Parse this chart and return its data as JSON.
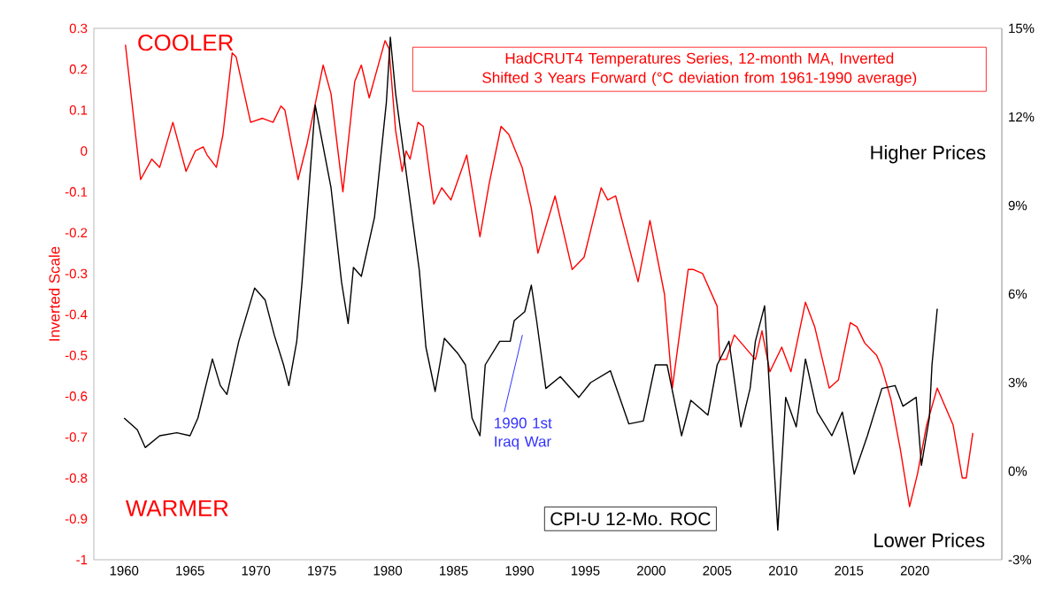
{
  "chart_data": {
    "type": "line",
    "ylabel": "Inverted Scale",
    "xlim": [
      1957.7,
      2026.6
    ],
    "xticks": [
      1960,
      1965,
      1970,
      1975,
      1980,
      1985,
      1990,
      1995,
      2000,
      2005,
      2010,
      2015,
      2020
    ],
    "ylim": [
      -1,
      0.3
    ],
    "yticks": [
      -1,
      -0.9,
      -0.8,
      -0.7,
      -0.6,
      -0.5,
      -0.4,
      -0.3,
      -0.2,
      -0.1,
      0,
      0.1,
      0.2,
      0.3
    ],
    "y2lim": [
      -3,
      15
    ],
    "y2ticks": [
      {
        "value": -3,
        "label": "-3%"
      },
      {
        "value": 0,
        "label": "0%"
      },
      {
        "value": 3,
        "label": "3%"
      },
      {
        "value": 6,
        "label": "6%"
      },
      {
        "value": 9,
        "label": "9%"
      },
      {
        "value": 12,
        "label": "12%"
      },
      {
        "value": 15,
        "label": "15%"
      }
    ],
    "annotations": [
      "COOLER",
      "WARMER",
      "Higher Prices",
      "Lower Prices",
      "1990 1st Iraq War"
    ],
    "series": [
      {
        "name": "HadCRUT4 Temperatures Series, 12-month MA, Inverted Shifted 3 Years Forward (°C deviation from 1961-1990 average)",
        "color": "#ff0000",
        "x": [
          1960.1,
          1961.25,
          1962.1,
          1962.7,
          1963.7,
          1964.7,
          1965.4,
          1966,
          1966.3,
          1967,
          1967.5,
          1968.2,
          1968.5,
          1969.6,
          1970.5,
          1971.3,
          1971.9,
          1972.2,
          1973.2,
          1973.9,
          1975.1,
          1975.7,
          1976.6,
          1977.5,
          1978.0,
          1978.6,
          1979.2,
          1979.8,
          1980.1,
          1980.6,
          1981.1,
          1981.4,
          1981.7,
          1982.3,
          1982.7,
          1983.5,
          1984.1,
          1984.8,
          1986,
          1987,
          1987.7,
          1988.6,
          1989.2,
          1990.2,
          1990.9,
          1991.4,
          1992.7,
          1994,
          1994.9,
          1996.2,
          1996.7,
          1997.3,
          1999,
          1999.9,
          2001,
          2001.6,
          2002.8,
          2003.2,
          2003.9,
          2005,
          2005.2,
          2005.7,
          2006.3,
          2007.1,
          2007.9,
          2008.4,
          2009,
          2009.9,
          2010.6,
          2011.7,
          2012.4,
          2013.5,
          2014.2,
          2015.1,
          2015.6,
          2016.2,
          2017.1,
          2017.5,
          2018.2,
          2018.9,
          2019.6,
          2020.2,
          2020.9,
          2021.7,
          2022.9,
          2023.6,
          2023.9,
          2024.4
        ],
        "values": [
          0.26,
          -0.07,
          -0.02,
          -0.04,
          0.07,
          -0.05,
          0.0,
          0.01,
          -0.01,
          -0.04,
          0.04,
          0.24,
          0.23,
          0.07,
          0.08,
          0.07,
          0.11,
          0.1,
          -0.07,
          0.02,
          0.21,
          0.14,
          -0.1,
          0.17,
          0.21,
          0.13,
          0.2,
          0.27,
          0.25,
          0.05,
          -0.05,
          0.0,
          -0.02,
          0.07,
          0.06,
          -0.13,
          -0.09,
          -0.12,
          -0.01,
          -0.21,
          -0.08,
          0.06,
          0.04,
          -0.04,
          -0.14,
          -0.25,
          -0.11,
          -0.29,
          -0.26,
          -0.09,
          -0.12,
          -0.11,
          -0.32,
          -0.17,
          -0.35,
          -0.58,
          -0.29,
          -0.29,
          -0.3,
          -0.38,
          -0.51,
          -0.51,
          -0.45,
          -0.48,
          -0.51,
          -0.44,
          -0.54,
          -0.48,
          -0.54,
          -0.37,
          -0.43,
          -0.58,
          -0.56,
          -0.42,
          -0.43,
          -0.47,
          -0.5,
          -0.53,
          -0.61,
          -0.73,
          -0.87,
          -0.79,
          -0.67,
          -0.58,
          -0.67,
          -0.8,
          -0.8,
          -0.69
        ]
      },
      {
        "name": "CPI-U 12-Mo. ROC",
        "color": "#000000",
        "axis": "y2",
        "x": [
          1960,
          1961,
          1961.6,
          1962.7,
          1964,
          1965,
          1965.6,
          1966.7,
          1967.3,
          1967.8,
          1968.7,
          1969.9,
          1970.7,
          1971.4,
          1972.1,
          1972.5,
          1973.1,
          1973.5,
          1974.5,
          1975.7,
          1976.5,
          1977,
          1977.4,
          1978,
          1979,
          1979.9,
          1980.2,
          1980.6,
          1981.5,
          1982.4,
          1982.9,
          1983.6,
          1984.3,
          1985.3,
          1985.9,
          1986.4,
          1987,
          1987.4,
          1988.5,
          1989.3,
          1989.6,
          1990.4,
          1990.9,
          1991.3,
          1992,
          1993.1,
          1994.5,
          1995.4,
          1996.9,
          1998.3,
          1999.4,
          2000.3,
          2001.2,
          2002.3,
          2003,
          2004.3,
          2005,
          2005.9,
          2006.8,
          2007.5,
          2007.9,
          2008.6,
          2009.1,
          2009.6,
          2010.2,
          2011,
          2011.7,
          2012.6,
          2013.7,
          2014.5,
          2015.4,
          2016.4,
          2017.5,
          2018.5,
          2019.1,
          2020.1,
          2020.5,
          2021.1,
          2021.3,
          2021.7
        ],
        "values": [
          1.8,
          1.4,
          0.8,
          1.2,
          1.3,
          1.2,
          1.8,
          3.8,
          2.9,
          2.6,
          4.4,
          6.2,
          5.8,
          4.6,
          3.6,
          2.9,
          4.4,
          6.4,
          12.4,
          9.6,
          6.4,
          5.0,
          6.9,
          6.6,
          8.6,
          12.5,
          14.7,
          12.8,
          9.8,
          6.8,
          4.2,
          2.7,
          4.5,
          4.0,
          3.6,
          1.8,
          1.2,
          3.6,
          4.4,
          4.4,
          5.1,
          5.4,
          6.3,
          5.1,
          2.8,
          3.2,
          2.5,
          3.0,
          3.4,
          1.6,
          1.7,
          3.6,
          3.6,
          1.2,
          2.4,
          1.9,
          3.6,
          4.4,
          1.5,
          2.8,
          4.4,
          5.6,
          1.8,
          -2.0,
          2.5,
          1.5,
          3.8,
          2.0,
          1.2,
          2.0,
          -0.1,
          1.2,
          2.8,
          2.9,
          2.2,
          2.5,
          0.2,
          1.8,
          3.6,
          5.5
        ]
      }
    ]
  }
}
